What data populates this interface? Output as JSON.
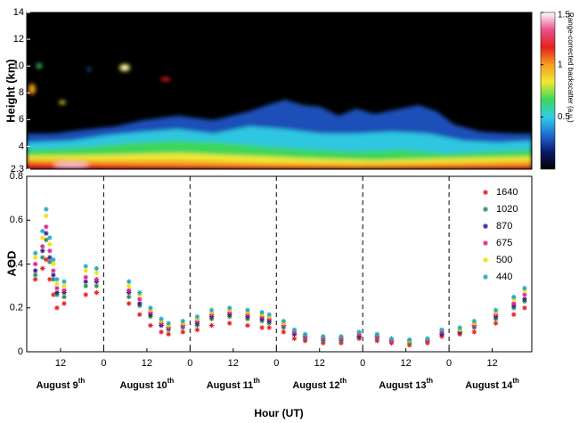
{
  "chart_data": [
    {
      "type": "heatmap",
      "ylabel": "Height (km)",
      "ylim": [
        2.3,
        14
      ],
      "yticks": [
        2.3,
        4,
        6,
        8,
        10,
        12,
        14
      ],
      "colorbar": {
        "label": "Range-corrected backscatter (a.u.)",
        "lim": [
          0,
          1.5
        ],
        "ticks": [
          0.5,
          1,
          1.5
        ],
        "colors": [
          "#000000",
          "#0a1a6e",
          "#1f6fd6",
          "#2fd0e6",
          "#3ed65a",
          "#f0e830",
          "#f5a020",
          "#e8201e",
          "#e8508a",
          "#ffffff"
        ]
      }
    },
    {
      "type": "scatter",
      "ylabel": "AOD",
      "xlabel": "Hour (UT)",
      "xlim": [
        2.6,
        143
      ],
      "xticks": [
        12,
        {
          "value": 24,
          "label": "0"
        },
        {
          "value": 36,
          "label": "12"
        },
        {
          "value": 48,
          "label": "0"
        },
        {
          "value": 60,
          "label": "12"
        },
        {
          "value": 72,
          "label": "0"
        },
        {
          "value": 84,
          "label": "12"
        },
        {
          "value": 96,
          "label": "0"
        },
        {
          "value": 108,
          "label": "12"
        },
        {
          "value": 120,
          "label": "0"
        },
        {
          "value": 132,
          "label": "12"
        }
      ],
      "ylim": [
        0,
        0.8
      ],
      "yticks": [
        0,
        0.2,
        0.4,
        0.6,
        0.8
      ],
      "day_boundaries": [
        24,
        48,
        72,
        96,
        120
      ],
      "day_labels": [
        {
          "label": "August 9",
          "suffix": "th"
        },
        {
          "label": "August 10",
          "suffix": "th"
        },
        {
          "label": "August 11",
          "suffix": "th"
        },
        {
          "label": "August 12",
          "suffix": "th"
        },
        {
          "label": "August 13",
          "suffix": "th"
        },
        {
          "label": "August 14",
          "suffix": "th"
        }
      ],
      "legend": "upper right",
      "x": [
        5,
        7,
        8,
        9,
        10,
        11,
        13,
        19,
        22,
        31,
        34,
        37,
        40,
        42,
        46,
        50,
        54,
        59,
        64,
        68,
        70,
        74,
        77,
        80,
        85,
        90,
        95,
        100,
        104,
        109,
        114,
        118,
        123,
        127,
        133,
        138,
        141
      ],
      "series": [
        {
          "name": "1640",
          "color": "#e8201e",
          "values": [
            0.33,
            0.38,
            0.42,
            0.33,
            0.26,
            0.2,
            0.22,
            0.26,
            0.27,
            0.22,
            0.17,
            0.12,
            0.09,
            0.08,
            0.09,
            0.1,
            0.12,
            0.13,
            0.12,
            0.11,
            0.11,
            0.09,
            0.06,
            0.05,
            0.04,
            0.04,
            0.06,
            0.05,
            0.04,
            0.03,
            0.04,
            0.07,
            0.08,
            0.09,
            0.13,
            0.17,
            0.2
          ]
        },
        {
          "name": "1020",
          "color": "#2e8b57",
          "values": [
            0.35,
            0.43,
            0.51,
            0.41,
            0.33,
            0.26,
            0.25,
            0.3,
            0.3,
            0.25,
            0.21,
            0.16,
            0.12,
            0.1,
            0.11,
            0.12,
            0.15,
            0.16,
            0.15,
            0.14,
            0.13,
            0.11,
            0.08,
            0.06,
            0.05,
            0.05,
            0.07,
            0.06,
            0.05,
            0.04,
            0.05,
            0.08,
            0.09,
            0.11,
            0.15,
            0.2,
            0.23
          ]
        },
        {
          "name": "870",
          "color": "#3b1e8a",
          "values": [
            0.37,
            0.46,
            0.54,
            0.43,
            0.35,
            0.27,
            0.27,
            0.32,
            0.32,
            0.27,
            0.22,
            0.17,
            0.12,
            0.11,
            0.12,
            0.13,
            0.16,
            0.17,
            0.16,
            0.15,
            0.14,
            0.12,
            0.08,
            0.07,
            0.06,
            0.06,
            0.07,
            0.07,
            0.05,
            0.05,
            0.05,
            0.08,
            0.09,
            0.12,
            0.16,
            0.21,
            0.24
          ]
        },
        {
          "name": "675",
          "color": "#e0218a",
          "values": [
            0.4,
            0.48,
            0.57,
            0.46,
            0.37,
            0.29,
            0.28,
            0.34,
            0.33,
            0.28,
            0.24,
            0.18,
            0.13,
            0.11,
            0.12,
            0.14,
            0.17,
            0.18,
            0.17,
            0.16,
            0.15,
            0.12,
            0.09,
            0.07,
            0.06,
            0.06,
            0.08,
            0.07,
            0.05,
            0.05,
            0.05,
            0.09,
            0.1,
            0.12,
            0.17,
            0.22,
            0.26
          ]
        },
        {
          "name": "500",
          "color": "#f0e000",
          "values": [
            0.43,
            0.52,
            0.62,
            0.49,
            0.4,
            0.31,
            0.3,
            0.37,
            0.36,
            0.3,
            0.26,
            0.19,
            0.14,
            0.12,
            0.13,
            0.15,
            0.18,
            0.19,
            0.18,
            0.17,
            0.16,
            0.13,
            0.1,
            0.08,
            0.07,
            0.07,
            0.09,
            0.08,
            0.06,
            0.05,
            0.06,
            0.1,
            0.1,
            0.13,
            0.18,
            0.24,
            0.28
          ]
        },
        {
          "name": "440",
          "color": "#21a6c8",
          "values": [
            0.45,
            0.55,
            0.65,
            0.52,
            0.42,
            0.33,
            0.32,
            0.39,
            0.38,
            0.32,
            0.27,
            0.2,
            0.15,
            0.13,
            0.14,
            0.16,
            0.19,
            0.2,
            0.19,
            0.18,
            0.17,
            0.14,
            0.1,
            0.08,
            0.07,
            0.07,
            0.09,
            0.08,
            0.06,
            0.055,
            0.06,
            0.1,
            0.11,
            0.14,
            0.19,
            0.25,
            0.29
          ]
        }
      ]
    }
  ]
}
